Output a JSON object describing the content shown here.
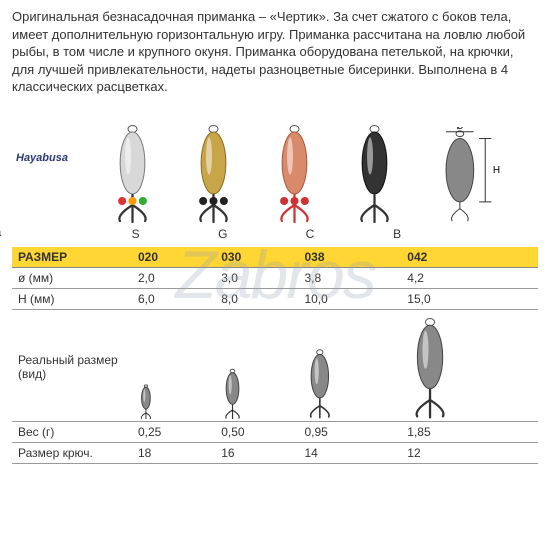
{
  "description": "Оригинальная безнасадочная приманка – «Чертик». За счет сжатого с боков тела, имеет дополнительную горизонтальную игру. Приманка рассчитана на ловлю любой рыбы, в том числе и крупного окуня. Приманка оборудована петелькой, на крючки, для лучшей привлекательности, надеты разноцветные бисеринки. Выполнена в 4 классических расцветках.",
  "brand": "Hayabusa",
  "watermark": "Zabros",
  "section_labels": {
    "color": "Расцветка",
    "real_size": "Реальный размер (вид)"
  },
  "variants": [
    {
      "code": "S",
      "body_fill": "#d8d8d8",
      "body_stroke": "#777",
      "hook_color": "#333",
      "beads": [
        "#d33",
        "#f90",
        "#3a3"
      ]
    },
    {
      "code": "G",
      "body_fill": "#c9a54a",
      "body_stroke": "#8a6b20",
      "hook_color": "#333",
      "beads": [
        "#222",
        "#222",
        "#222"
      ]
    },
    {
      "code": "C",
      "body_fill": "#d88a6a",
      "body_stroke": "#a5583a",
      "hook_color": "#c33",
      "beads": [
        "#c33",
        "#c33",
        "#c33"
      ]
    },
    {
      "code": "B",
      "body_fill": "#333",
      "body_stroke": "#111",
      "hook_color": "#333",
      "beads": []
    }
  ],
  "diagram": {
    "phi": "Ø",
    "h": "H"
  },
  "table": {
    "header": [
      "РАЗМЕР",
      "020",
      "030",
      "038",
      "042"
    ],
    "rows_top": [
      [
        "ø (мм)",
        "2,0",
        "3,0",
        "3,8",
        "4,2"
      ],
      [
        "H (мм)",
        "6,0",
        "8,0",
        "10,0",
        "15,0"
      ]
    ],
    "rows_bottom": [
      [
        "Вес (г)",
        "0,25",
        "0,50",
        "0,95",
        "1,85"
      ],
      [
        "Размер крюч.",
        "18",
        "16",
        "14",
        "12"
      ]
    ],
    "real_sizes": [
      22,
      32,
      44,
      64
    ]
  },
  "colors": {
    "header_bg": "#ffd633",
    "rule": "#999999"
  }
}
